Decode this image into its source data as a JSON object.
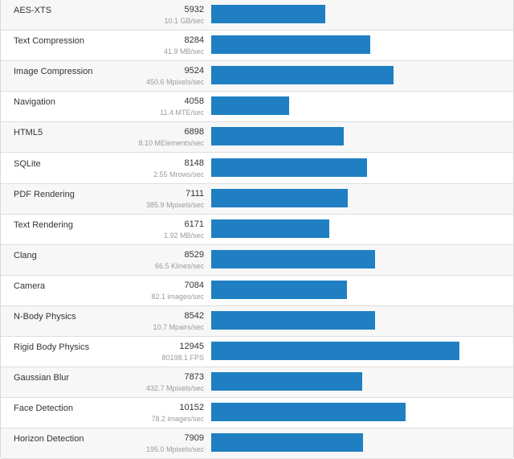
{
  "benchmarks": [
    {
      "name": "AES-XTS",
      "score": "5932",
      "detail": "10.1 GB/sec",
      "value": 5932
    },
    {
      "name": "Text Compression",
      "score": "8284",
      "detail": "41.9 MB/sec",
      "value": 8284
    },
    {
      "name": "Image Compression",
      "score": "9524",
      "detail": "450.6 Mpixels/sec",
      "value": 9524
    },
    {
      "name": "Navigation",
      "score": "4058",
      "detail": "11.4 MTE/sec",
      "value": 4058
    },
    {
      "name": "HTML5",
      "score": "6898",
      "detail": "8.10 MElements/sec",
      "value": 6898
    },
    {
      "name": "SQLite",
      "score": "8148",
      "detail": "2.55 Mrows/sec",
      "value": 8148
    },
    {
      "name": "PDF Rendering",
      "score": "7111",
      "detail": "385.9 Mpixels/sec",
      "value": 7111
    },
    {
      "name": "Text Rendering",
      "score": "6171",
      "detail": "1.92 MB/sec",
      "value": 6171
    },
    {
      "name": "Clang",
      "score": "8529",
      "detail": "66.5 Klines/sec",
      "value": 8529
    },
    {
      "name": "Camera",
      "score": "7084",
      "detail": "82.1 images/sec",
      "value": 7084
    },
    {
      "name": "N-Body Physics",
      "score": "8542",
      "detail": "10.7 Mpairs/sec",
      "value": 8542
    },
    {
      "name": "Rigid Body Physics",
      "score": "12945",
      "detail": "80198.1 FPS",
      "value": 12945
    },
    {
      "name": "Gaussian Blur",
      "score": "7873",
      "detail": "432.7 Mpixels/sec",
      "value": 7873
    },
    {
      "name": "Face Detection",
      "score": "10152",
      "detail": "78.2 images/sec",
      "value": 10152
    },
    {
      "name": "Horizon Detection",
      "score": "7909",
      "detail": "195.0 Mpixels/sec",
      "value": 7909
    }
  ],
  "colors": {
    "bar": "#1f7fc2",
    "row_alt": "#f7f7f7",
    "text": "#333333",
    "muted": "#9a9a9a"
  }
}
